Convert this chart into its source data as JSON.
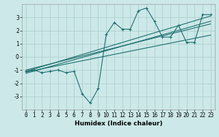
{
  "xlabel": "Humidex (Indice chaleur)",
  "bg_color": "#cce8e8",
  "grid_color": "#afd0d0",
  "line_color": "#1a6b6b",
  "scatter_x": [
    0,
    1,
    2,
    3,
    4,
    5,
    6,
    7,
    8,
    9,
    10,
    11,
    12,
    13,
    14,
    15,
    16,
    17,
    18,
    19,
    20,
    21,
    22,
    23
  ],
  "scatter_y": [
    -1.1,
    -1.0,
    -1.2,
    -1.1,
    -1.0,
    -1.2,
    -1.1,
    -2.8,
    -3.5,
    -2.4,
    1.7,
    2.6,
    2.1,
    2.1,
    3.5,
    3.7,
    2.7,
    1.5,
    1.5,
    2.4,
    1.1,
    1.1,
    3.2,
    3.2
  ],
  "reg_lines": [
    {
      "x0": 0,
      "y0": -1.25,
      "x1": 23,
      "y1": 2.7
    },
    {
      "x0": 0,
      "y0": -1.1,
      "x1": 23,
      "y1": 3.1
    },
    {
      "x0": 0,
      "y0": -1.0,
      "x1": 23,
      "y1": 2.5
    },
    {
      "x0": 0,
      "y0": -1.15,
      "x1": 23,
      "y1": 1.65
    }
  ],
  "xlim": [
    -0.5,
    23.5
  ],
  "ylim": [
    -4.0,
    4.0
  ],
  "yticks": [
    -3,
    -2,
    -1,
    0,
    1,
    2,
    3
  ],
  "xticks": [
    0,
    1,
    2,
    3,
    4,
    5,
    6,
    7,
    8,
    9,
    10,
    11,
    12,
    13,
    14,
    15,
    16,
    17,
    18,
    19,
    20,
    21,
    22,
    23
  ],
  "xlabel_fontsize": 6.5,
  "tick_fontsize": 5.5,
  "line_width": 0.8,
  "marker_size": 5
}
